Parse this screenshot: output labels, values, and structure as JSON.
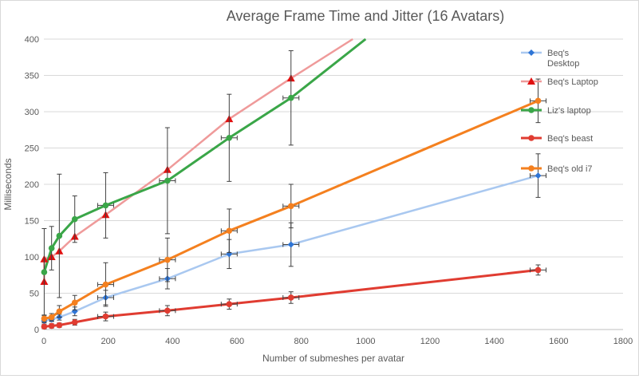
{
  "chart_data": {
    "type": "line",
    "title": "Average Frame Time and Jitter (16 Avatars)",
    "xlabel": "Number of submeshes per avatar",
    "ylabel": "Milliseconds",
    "xlim": [
      0,
      1800
    ],
    "ylim": [
      0,
      400
    ],
    "xticks": [
      0,
      200,
      400,
      600,
      800,
      1000,
      1200,
      1400,
      1600,
      1800
    ],
    "yticks": [
      0,
      50,
      100,
      150,
      200,
      250,
      300,
      350,
      400
    ],
    "grid": "horizontal",
    "legend_position": "right",
    "series": [
      {
        "name": "Beq's Desktop",
        "color": "#a9c8f0",
        "marker": "diamond",
        "markerColor": "#2e75d6",
        "width": 2.5,
        "x": [
          1,
          24,
          48,
          96,
          192,
          384,
          576,
          768,
          1536
        ],
        "y": [
          12,
          14,
          17,
          25,
          44,
          70,
          104,
          117,
          212
        ],
        "err": [
          3,
          3,
          4,
          6,
          10,
          14,
          20,
          30,
          30
        ]
      },
      {
        "name": "Beq's Laptop",
        "color": "#ef9a9a",
        "marker": "triangle",
        "markerColor": "#e01010",
        "width": 2.5,
        "x": [
          1,
          1,
          24,
          48,
          96,
          192,
          384,
          576,
          768,
          960
        ],
        "y": [
          66,
          97,
          100,
          108,
          128,
          158,
          220,
          290,
          346,
          400
        ]
      },
      {
        "name": "Liz's laptop",
        "color": "#3aa648",
        "marker": "circle",
        "markerColor": "#3aa648",
        "width": 3,
        "x": [
          1,
          24,
          48,
          96,
          192,
          384,
          576,
          768,
          1000
        ],
        "y": [
          79,
          112,
          129,
          152,
          171,
          205,
          264,
          319,
          400
        ],
        "err": [
          60,
          30,
          85,
          32,
          45,
          73,
          60,
          65,
          0
        ]
      },
      {
        "name": "Beq's beast",
        "color": "#e03c31",
        "marker": "circle",
        "markerColor": "#e03c31",
        "width": 3,
        "x": [
          1,
          24,
          48,
          96,
          192,
          384,
          576,
          768,
          1536
        ],
        "y": [
          4,
          5,
          6,
          10,
          18,
          26,
          35,
          44,
          82
        ],
        "err": [
          3,
          3,
          3,
          4,
          6,
          7,
          7,
          8,
          7
        ]
      },
      {
        "name": "Beq's old i7",
        "color": "#f4801f",
        "marker": "circle",
        "markerColor": "#f4801f",
        "width": 3,
        "x": [
          1,
          24,
          48,
          96,
          192,
          384,
          576,
          768,
          1536
        ],
        "y": [
          15,
          17,
          25,
          37,
          62,
          96,
          136,
          170,
          315
        ],
        "err": [
          5,
          5,
          8,
          10,
          30,
          30,
          30,
          30,
          30
        ]
      }
    ]
  }
}
